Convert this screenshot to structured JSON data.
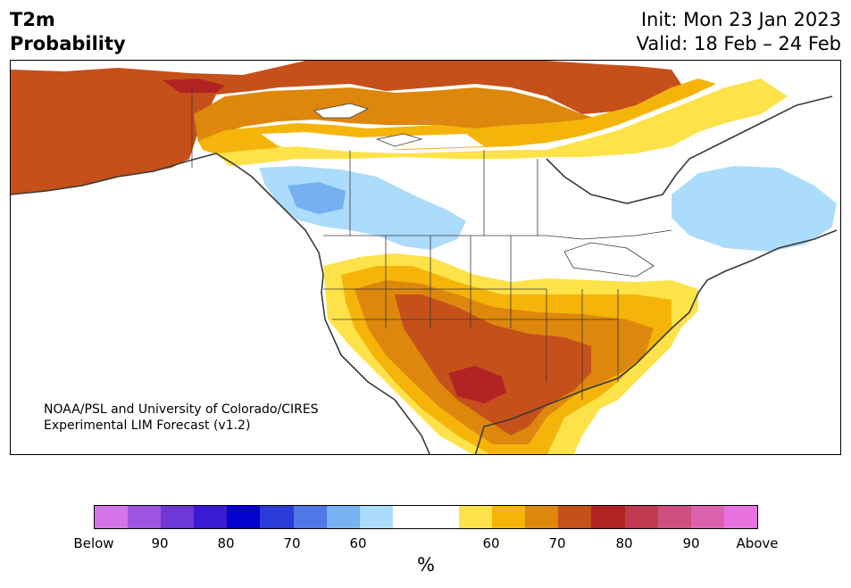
{
  "header": {
    "title_line1": "T2m",
    "title_line2": "Probability",
    "init": "Init: Mon 23 Jan 2023",
    "valid": "Valid: 18 Feb – 24 Feb"
  },
  "map": {
    "region": "North America",
    "credit_line1": "NOAA/PSL and University of Colorado/CIRES",
    "credit_line2": "Experimental LIM Forecast (v1.2)",
    "colors": {
      "below_60": "#acdcfb",
      "below_70": "#76b0f2",
      "above_60": "#fde24a",
      "above_70": "#f5b40a",
      "above_80": "#dd870c",
      "above_90": "#c5501a",
      "above_95": "#b22424",
      "outline": "#3a3a3a"
    }
  },
  "colorbar": {
    "colors": [
      "#d573ea",
      "#9e55e0",
      "#6d38d6",
      "#3b1ad4",
      "#0400cf",
      "#2a3bd8",
      "#5176e6",
      "#77b2f2",
      "#acdcfb",
      "#ffffff",
      "#ffffff",
      "#fde24a",
      "#f5b40a",
      "#dd870c",
      "#c5501a",
      "#b22424",
      "#c1394f",
      "#cf4f7e",
      "#dd62ae",
      "#e671df"
    ],
    "tick_labels": [
      "Below",
      "90",
      "80",
      "70",
      "60",
      "60",
      "70",
      "80",
      "90",
      "Above"
    ],
    "unit_label": "%"
  }
}
